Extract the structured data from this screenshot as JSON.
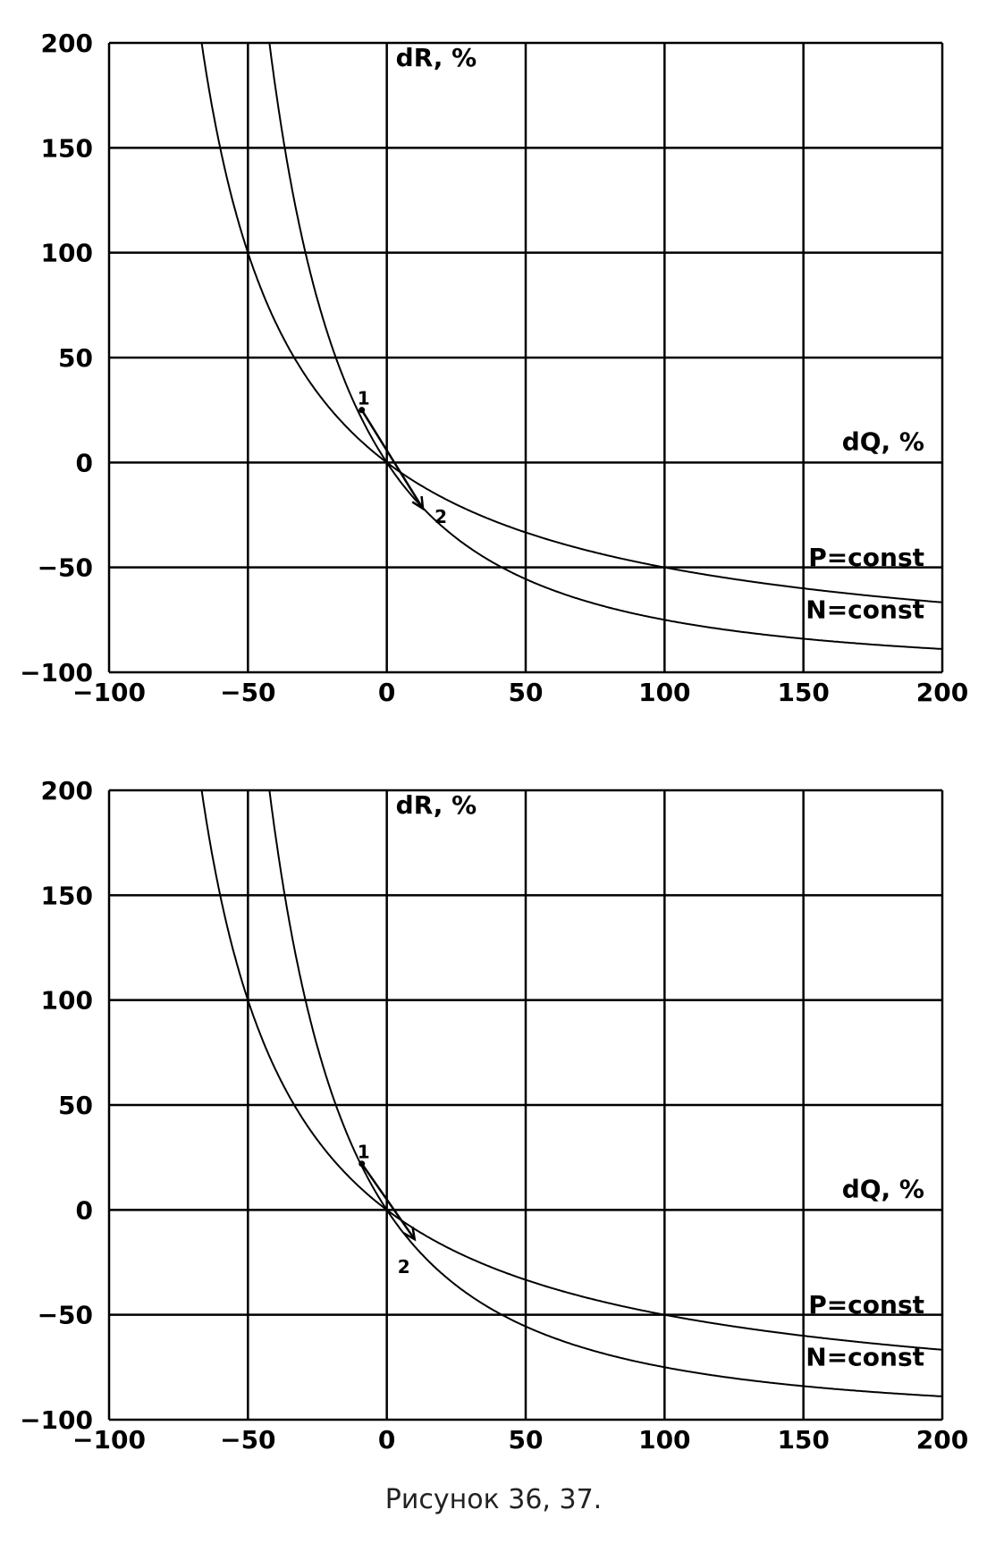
{
  "caption": "Рисунок 36, 37.",
  "chart_data": [
    {
      "type": "line",
      "title": "",
      "xlabel": "dQ, %",
      "ylabel": "dR, %",
      "xlim": [
        -100,
        200
      ],
      "ylim": [
        -100,
        200
      ],
      "xticks": [
        "−100",
        "−50",
        "0",
        "50",
        "100",
        "150",
        "200"
      ],
      "yticks": [
        "200",
        "150",
        "100",
        "50",
        "0",
        "−50",
        "−100"
      ],
      "xtick_values": [
        -100,
        -50,
        0,
        50,
        100,
        150,
        200
      ],
      "ytick_values": [
        200,
        150,
        100,
        50,
        0,
        -50,
        -100
      ],
      "grid": true,
      "series": [
        {
          "name": "P=const",
          "label_at": [
            200,
            -45
          ],
          "formula": "R = 100/(1+Q/100) - 100"
        },
        {
          "name": "N=const",
          "label_at": [
            200,
            -70
          ],
          "formula": "R = 100/(1+Q/100)^2 - 100"
        }
      ],
      "arrow": {
        "from": [
          -9,
          25
        ],
        "to": [
          13,
          -22
        ],
        "start_label": "1",
        "end_label": "2"
      }
    },
    {
      "type": "line",
      "title": "",
      "xlabel": "dQ, %",
      "ylabel": "dR, %",
      "xlim": [
        -100,
        200
      ],
      "ylim": [
        -100,
        200
      ],
      "xticks": [
        "−100",
        "−50",
        "0",
        "50",
        "100",
        "150",
        "200"
      ],
      "yticks": [
        "200",
        "150",
        "100",
        "50",
        "0",
        "−50",
        "−100"
      ],
      "xtick_values": [
        -100,
        -50,
        0,
        50,
        100,
        150,
        200
      ],
      "ytick_values": [
        200,
        150,
        100,
        50,
        0,
        -50,
        -100
      ],
      "grid": true,
      "series": [
        {
          "name": "P=const",
          "label_at": [
            200,
            -45
          ],
          "formula": "R = 100/(1+Q/100) - 100"
        },
        {
          "name": "N=const",
          "label_at": [
            200,
            -70
          ],
          "formula": "R = 100/(1+Q/100)^2 - 100"
        }
      ],
      "arrow": {
        "from": [
          -9,
          22
        ],
        "to": [
          10,
          -14
        ],
        "start_label": "1",
        "end_label": "2"
      }
    }
  ]
}
